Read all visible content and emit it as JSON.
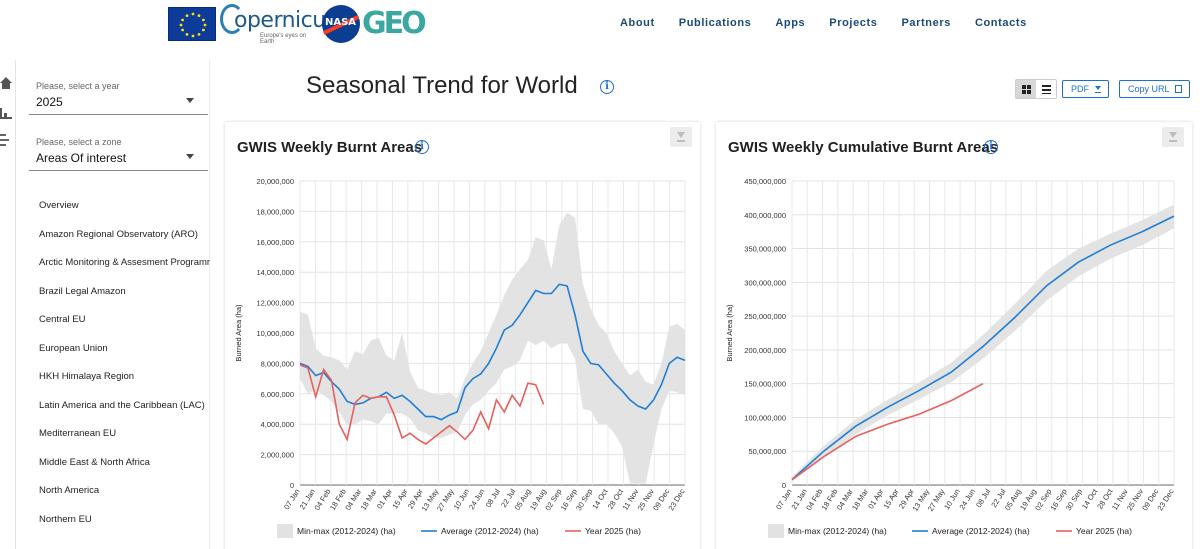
{
  "nav": [
    "About",
    "Publications",
    "Apps",
    "Projects",
    "Partners",
    "Contacts"
  ],
  "logos": {
    "copernicus": "opernicus",
    "copernicus_sub": "Europe's eyes on Earth",
    "nasa": "NASA",
    "geo": "GEO"
  },
  "filters": {
    "year_label": "Please, select a year",
    "year_value": "2025",
    "zone_label": "Please, select a zone",
    "zone_value": "Areas Of interest"
  },
  "zones": [
    "Overview",
    "Amazon Regional Observatory (ARO)",
    "Arctic Monitoring & Assesment Programme",
    "Brazil Legal Amazon",
    "Central EU",
    "European Union",
    "HKH Himalaya Region",
    "Latin America and the Caribbean (LAC)",
    "Mediterranean EU",
    "Middle East & North Africa",
    "North America",
    "Northern EU"
  ],
  "page_title": "Seasonal Trend for World",
  "toolbar": {
    "pdf_label": "PDF",
    "copy_label": "Copy URL"
  },
  "colors": {
    "average": "#1f7fd6",
    "year": "#e8605d",
    "minmax": "#e2e2e2",
    "accent": "#1f6fd1"
  },
  "chart_data": [
    {
      "type": "area",
      "title": "GWIS Weekly Burnt Areas",
      "ylabel": "Burned Area (ha)",
      "ylim": [
        0,
        20000000
      ],
      "yticks": [
        "0",
        "2,000,000",
        "4,000,000",
        "6,000,000",
        "8,000,000",
        "10,000,000",
        "12,000,000",
        "14,000,000",
        "16,000,000",
        "18,000,000",
        "20,000,000"
      ],
      "x_labels": [
        "07 Jan",
        "21 Jan",
        "04 Feb",
        "18 Feb",
        "04 Mar",
        "18 Mar",
        "01 Apr",
        "15 Apr",
        "29 Apr",
        "13 May",
        "27 May",
        "10 Jun",
        "24 Jun",
        "08 Jul",
        "22 Jul",
        "05 Aug",
        "19 Aug",
        "02 Sep",
        "16 Sep",
        "30 Sep",
        "14 Oct",
        "28 Oct",
        "11 Nov",
        "25 Nov",
        "09 Dec",
        "23 Dec"
      ],
      "legend": [
        "Min-max (2012-2024) (ha)",
        "Average (2012-2024) (ha)",
        "Year 2025 (ha)"
      ],
      "legend_position": "bottom",
      "series": [
        {
          "name": "Average (2012-2024) (ha)",
          "values": [
            8000000,
            7800000,
            7200000,
            7400000,
            6800000,
            6300000,
            5500000,
            5300000,
            5400000,
            5700000,
            5800000,
            6100000,
            5700000,
            5900000,
            5500000,
            5000000,
            4500000,
            4500000,
            4300000,
            4600000,
            4800000,
            6400000,
            7000000,
            7300000,
            8000000,
            9000000,
            10200000,
            10500000,
            11200000,
            12000000,
            12800000,
            12600000,
            12600000,
            13200000,
            13100000,
            11200000,
            8800000,
            8000000,
            7900000,
            7300000,
            6700000,
            6200000,
            5600000,
            5200000,
            5000000,
            5600000,
            6600000,
            8000000,
            8400000,
            8200000
          ]
        },
        {
          "name": "Min-max (2012-2024) (ha) max",
          "values": [
            11400000,
            11200000,
            9000000,
            8500000,
            8400000,
            8200000,
            7600000,
            8800000,
            8600000,
            9500000,
            9700000,
            8500000,
            8200000,
            10000000,
            7500000,
            6400000,
            6200000,
            6000000,
            5900000,
            6100000,
            5700000,
            7000000,
            8000000,
            8800000,
            10000000,
            11200000,
            12500000,
            13500000,
            14200000,
            14800000,
            16300000,
            16100000,
            14200000,
            17100000,
            17900000,
            17600000,
            13200000,
            11600000,
            10500000,
            10000000,
            8800000,
            8000000,
            7200000,
            7600000,
            6800000,
            6600000,
            8000000,
            10400000,
            10600000,
            10200000
          ]
        },
        {
          "name": "Min-max (2012-2024) (ha) min",
          "values": [
            7000000,
            6000000,
            6300000,
            5900000,
            5500000,
            4800000,
            3900000,
            4000000,
            4300000,
            4200000,
            4000000,
            4700000,
            4700000,
            4700000,
            4400000,
            3600000,
            3400000,
            3100000,
            3100000,
            3300000,
            3500000,
            4600000,
            5300000,
            5600000,
            6200000,
            6700000,
            7600000,
            7800000,
            8200000,
            9500000,
            9200000,
            9500000,
            9000000,
            9300000,
            9300000,
            8300000,
            5000000,
            4900000,
            4000000,
            4000000,
            3400000,
            2500000,
            100000,
            100000,
            100000,
            2700000,
            5000000,
            6200000,
            6100000,
            5900000
          ]
        },
        {
          "name": "Year 2025 (ha)",
          "values": [
            7900000,
            7700000,
            5800000,
            7600000,
            6900000,
            4000000,
            3000000,
            5400000,
            5900000,
            5700000,
            5800000,
            5800000,
            4600000,
            3100000,
            3400000,
            3000000,
            2700000,
            3100000,
            3500000,
            3900000,
            3500000,
            3000000,
            3600000,
            4800000,
            3700000,
            5600000,
            4800000,
            5900000,
            5200000,
            6700000,
            6600000,
            5300000
          ]
        }
      ]
    },
    {
      "type": "area",
      "title": "GWIS Weekly Cumulative Burnt Areas",
      "ylabel": "Burned Area (ha)",
      "ylim": [
        0,
        450000000
      ],
      "yticks": [
        "0",
        "50,000,000",
        "100,000,000",
        "150,000,000",
        "200,000,000",
        "250,000,000",
        "300,000,000",
        "350,000,000",
        "400,000,000",
        "450,000,000"
      ],
      "x_labels": [
        "07 Jan",
        "21 Jan",
        "04 Feb",
        "18 Feb",
        "04 Mar",
        "18 Mar",
        "01 Apr",
        "15 Apr",
        "29 Apr",
        "13 May",
        "27 May",
        "10 Jun",
        "24 Jun",
        "08 Jul",
        "22 Jul",
        "05 Aug",
        "19 Aug",
        "02 Sep",
        "16 Sep",
        "30 Sep",
        "14 Oct",
        "28 Oct",
        "11 Nov",
        "25 Nov",
        "09 Dec",
        "23 Dec"
      ],
      "legend": [
        "Min-max (2012-2024) (ha)",
        "Average (2012-2024) (ha)",
        "Year 2025 (ha)"
      ],
      "legend_position": "bottom",
      "series": [
        {
          "name": "Average (2012-2024) (ha)",
          "values": [
            8000000,
            50000000,
            87000000,
            115000000,
            140000000,
            167000000,
            205000000,
            248000000,
            295000000,
            330000000,
            355000000,
            375000000,
            398000000
          ]
        },
        {
          "name": "Min-max (2012-2024) (ha) max",
          "values": [
            12000000,
            58000000,
            97000000,
            126000000,
            152000000,
            181000000,
            222000000,
            268000000,
            317000000,
            350000000,
            372000000,
            392000000,
            415000000
          ]
        },
        {
          "name": "Min-max (2012-2024) (ha) min",
          "values": [
            5000000,
            40000000,
            75000000,
            103000000,
            127000000,
            152000000,
            187000000,
            228000000,
            273000000,
            309000000,
            335000000,
            355000000,
            380000000
          ]
        },
        {
          "name": "Year 2025 (ha)",
          "values": [
            7900000,
            42000000,
            72000000,
            90000000,
            105000000,
            125000000,
            150000000
          ]
        }
      ]
    }
  ]
}
